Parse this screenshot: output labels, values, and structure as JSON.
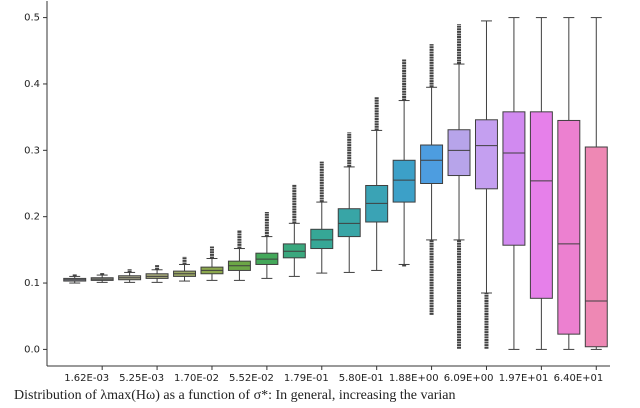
{
  "chart_data": {
    "type": "box",
    "categories": [
      null,
      "1.62E-03",
      null,
      "5.25E-03",
      null,
      "1.70E-02",
      null,
      "5.52E-02",
      null,
      "1.79E-01",
      null,
      "5.80E-01",
      null,
      "1.88E+00",
      null,
      "6.09E+00",
      null,
      "1.97E+01",
      null,
      "6.40E+01"
    ],
    "boxes": [
      {
        "whislo": 0.1,
        "q1": 0.103,
        "median": 0.105,
        "q3": 0.107,
        "whishi": 0.11,
        "flier_max": 0.113
      },
      {
        "whislo": 0.101,
        "q1": 0.104,
        "median": 0.106,
        "q3": 0.108,
        "whishi": 0.112,
        "flier_max": 0.115
      },
      {
        "whislo": 0.101,
        "q1": 0.105,
        "median": 0.108,
        "q3": 0.111,
        "whishi": 0.116,
        "flier_max": 0.121
      },
      {
        "whislo": 0.101,
        "q1": 0.107,
        "median": 0.11,
        "q3": 0.114,
        "whishi": 0.12,
        "flier_max": 0.127
      },
      {
        "whislo": 0.103,
        "q1": 0.11,
        "median": 0.114,
        "q3": 0.118,
        "whishi": 0.128,
        "flier_max": 0.14
      },
      {
        "whislo": 0.104,
        "q1": 0.114,
        "median": 0.119,
        "q3": 0.124,
        "whishi": 0.137,
        "flier_max": 0.155
      },
      {
        "whislo": 0.104,
        "q1": 0.119,
        "median": 0.126,
        "q3": 0.133,
        "whishi": 0.152,
        "flier_max": 0.18
      },
      {
        "whislo": 0.107,
        "q1": 0.128,
        "median": 0.136,
        "q3": 0.145,
        "whishi": 0.17,
        "flier_max": 0.207
      },
      {
        "whislo": 0.11,
        "q1": 0.138,
        "median": 0.148,
        "q3": 0.159,
        "whishi": 0.19,
        "flier_max": 0.248
      },
      {
        "whislo": 0.115,
        "q1": 0.152,
        "median": 0.165,
        "q3": 0.181,
        "whishi": 0.222,
        "flier_max": 0.283
      },
      {
        "whislo": 0.116,
        "q1": 0.17,
        "median": 0.19,
        "q3": 0.212,
        "whishi": 0.275,
        "flier_max": 0.327
      },
      {
        "whislo": 0.119,
        "q1": 0.192,
        "median": 0.22,
        "q3": 0.247,
        "whishi": 0.33,
        "flier_max": 0.38
      },
      {
        "whislo": 0.128,
        "q1": 0.222,
        "median": 0.255,
        "q3": 0.285,
        "whishi": 0.375,
        "flier_max": 0.437,
        "flier_min": 0.125
      },
      {
        "whislo": 0.165,
        "q1": 0.25,
        "median": 0.285,
        "q3": 0.308,
        "whishi": 0.395,
        "flier_max": 0.46,
        "flier_min": 0.052
      },
      {
        "whislo": 0.165,
        "q1": 0.262,
        "median": 0.3,
        "q3": 0.331,
        "whishi": 0.43,
        "flier_max": 0.49,
        "flier_min": 0.001
      },
      {
        "whislo": 0.085,
        "q1": 0.242,
        "median": 0.307,
        "q3": 0.346,
        "whishi": 0.495,
        "flier_min": 0.001
      },
      {
        "whislo": 0.0,
        "q1": 0.157,
        "median": 0.296,
        "q3": 0.358,
        "whishi": 0.5
      },
      {
        "whislo": 0.0,
        "q1": 0.077,
        "median": 0.254,
        "q3": 0.358,
        "whishi": 0.5
      },
      {
        "whislo": 0.0,
        "q1": 0.023,
        "median": 0.159,
        "q3": 0.345,
        "whishi": 0.5
      },
      {
        "whislo": 0.0,
        "q1": 0.004,
        "median": 0.073,
        "q3": 0.305,
        "whishi": 0.5
      }
    ],
    "colors": [
      "#a4a9b6",
      "#a6a99c",
      "#a8a98c",
      "#a6a97a",
      "#9ca866",
      "#8ca84e",
      "#6ca646",
      "#44a85a",
      "#3aa87e",
      "#36a796",
      "#38a5a6",
      "#3aa3b5",
      "#3ca0c8",
      "#4d9de0",
      "#b7a4ea",
      "#c49ff0",
      "#d18af0",
      "#e680ea",
      "#ec80d0",
      "#ee88b4"
    ],
    "ylim": [
      -0.025,
      0.525
    ],
    "yticks": [
      {
        "value": 0,
        "label": "0.0"
      },
      0.1,
      0.2,
      0.3,
      0.4,
      0.5
    ],
    "caption": "Distribution of λmax(Hω) as a function of σ*: In general, increasing the varian"
  }
}
